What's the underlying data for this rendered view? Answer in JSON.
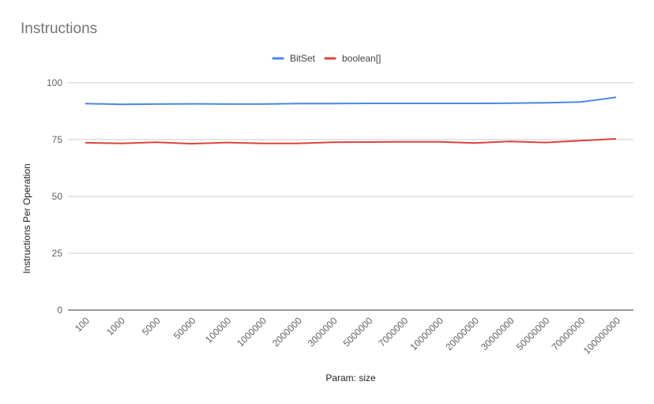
{
  "chart_data": {
    "type": "line",
    "title": "Instructions",
    "xlabel": "Param: size",
    "ylabel": "Instructions Per Operation",
    "categories": [
      "100",
      "1000",
      "5000",
      "50000",
      "100000",
      "1000000",
      "2000000",
      "3000000",
      "5000000",
      "7000000",
      "10000000",
      "20000000",
      "30000000",
      "50000000",
      "70000000",
      "100000000"
    ],
    "ylim": [
      0,
      110
    ],
    "yticks": [
      0,
      25,
      50,
      75,
      100
    ],
    "grid": true,
    "legend": "top-center",
    "series": [
      {
        "name": "BitSet",
        "color": "#4a86e8",
        "values": [
          90.8,
          90.5,
          90.6,
          90.7,
          90.6,
          90.6,
          90.8,
          90.8,
          90.9,
          90.9,
          90.9,
          90.9,
          91.0,
          91.2,
          91.5,
          93.6
        ]
      },
      {
        "name": "boolean[]",
        "color": "#db4437",
        "values": [
          73.6,
          73.3,
          73.8,
          73.2,
          73.7,
          73.3,
          73.3,
          73.8,
          73.9,
          74.0,
          74.0,
          73.5,
          74.2,
          73.7,
          74.5,
          75.3
        ]
      }
    ]
  }
}
